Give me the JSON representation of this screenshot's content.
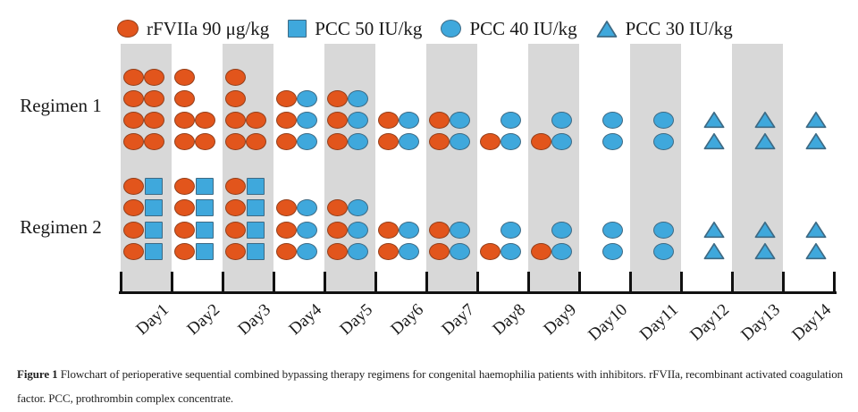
{
  "colors": {
    "orange_fill": "#E2551C",
    "orange_stroke": "#93401C",
    "blue_fill": "#3FA8DC",
    "blue_stroke": "#3E6A84",
    "band_gray": "#D8D8D8",
    "axis_black": "#111111",
    "text": "#1A1A1A"
  },
  "caption": {
    "prefix": "Figure 1",
    "text": "Flowchart of perioperative sequential combined bypassing therapy regimens for congenital haemophilia patients with inhibitors. rFVIIa, recombinant activated coagulation factor. PCC, prothrombin complex concentrate."
  },
  "chart_data": {
    "type": "dot-timeline",
    "title": "Perioperative sequential combined bypassing therapy regimens",
    "days": [
      "Day1",
      "Day2",
      "Day3",
      "Day4",
      "Day5",
      "Day6",
      "Day7",
      "Day8",
      "Day9",
      "Day10",
      "Day11",
      "Day12",
      "Day13",
      "Day14"
    ],
    "shaded_days": [
      1,
      3,
      5,
      7,
      9,
      11,
      13
    ],
    "legend": [
      {
        "symbol": "orange-ellipse",
        "code": "O",
        "label": "rFVIIa 90 μg/kg"
      },
      {
        "symbol": "blue-square",
        "code": "S",
        "label": "PCC 50 IU/kg"
      },
      {
        "symbol": "blue-circle",
        "code": "C",
        "label": "PCC 40 IU/kg"
      },
      {
        "symbol": "blue-triangle",
        "code": "T",
        "label": "PCC 30 IU/kg"
      }
    ],
    "cell_code_meaning": {
      "O": "rFVIIa 90 μg/kg dose",
      "S": "PCC 50 IU/kg dose",
      "C": "PCC 40 IU/kg dose",
      "T": "PCC 30 IU/kg dose",
      ".": "no dose"
    },
    "rows_per_regimen": 4,
    "slots_per_day": 2,
    "regimens": [
      {
        "label": "Regimen 1",
        "daily_doses": [
          [
            "OO",
            "OO",
            "OO",
            "OO"
          ],
          [
            "O.",
            "O.",
            "OO",
            "OO"
          ],
          [
            "O.",
            "O.",
            "OO",
            "OO"
          ],
          [
            "..",
            "OC",
            "OC",
            "OC"
          ],
          [
            "..",
            "OC",
            "OC",
            "OC"
          ],
          [
            "..",
            "..",
            "OC",
            "OC"
          ],
          [
            "..",
            "..",
            "OC",
            "OC"
          ],
          [
            "..",
            "..",
            ".C",
            "OC"
          ],
          [
            "..",
            "..",
            ".C",
            "OC"
          ],
          [
            "..",
            "..",
            ".C",
            ".C"
          ],
          [
            "..",
            "..",
            ".C",
            ".C"
          ],
          [
            "..",
            "..",
            ".T",
            ".T"
          ],
          [
            "..",
            "..",
            ".T",
            ".T"
          ],
          [
            "..",
            "..",
            ".T",
            ".T"
          ]
        ]
      },
      {
        "label": "Regimen 2",
        "daily_doses": [
          [
            "OS",
            "OS",
            "OS",
            "OS"
          ],
          [
            "OS",
            "OS",
            "OS",
            "OS"
          ],
          [
            "OS",
            "OS",
            "OS",
            "OS"
          ],
          [
            "..",
            "OC",
            "OC",
            "OC"
          ],
          [
            "..",
            "OC",
            "OC",
            "OC"
          ],
          [
            "..",
            "..",
            "OC",
            "OC"
          ],
          [
            "..",
            "..",
            "OC",
            "OC"
          ],
          [
            "..",
            "..",
            ".C",
            "OC"
          ],
          [
            "..",
            "..",
            ".C",
            "OC"
          ],
          [
            "..",
            "..",
            ".C",
            ".C"
          ],
          [
            "..",
            "..",
            ".C",
            ".C"
          ],
          [
            "..",
            "..",
            ".T",
            ".T"
          ],
          [
            "..",
            "..",
            ".T",
            ".T"
          ],
          [
            "..",
            "..",
            ".T",
            ".T"
          ]
        ]
      }
    ]
  }
}
